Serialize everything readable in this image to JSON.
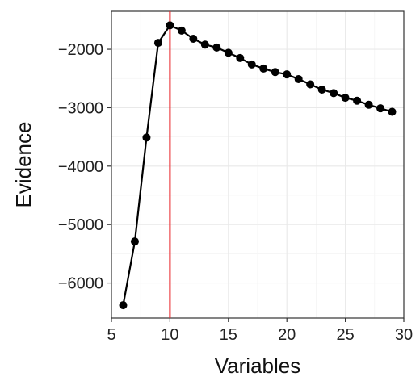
{
  "chart_data": {
    "type": "line",
    "xlabel": "Variables",
    "ylabel": "Evidence",
    "xlim": [
      5,
      30
    ],
    "ylim": [
      -6600,
      -1350
    ],
    "x_ticks": [
      5,
      10,
      15,
      20,
      25,
      30
    ],
    "x_tick_labels": [
      "5",
      "10",
      "15",
      "20",
      "25",
      "30"
    ],
    "y_ticks": [
      -6000,
      -5000,
      -4000,
      -3000,
      -2000
    ],
    "y_tick_labels": [
      "−6000",
      "−5000",
      "−4000",
      "−3000",
      "−2000"
    ],
    "grid": true,
    "vline": {
      "x": 10,
      "color": "#e8262b"
    },
    "series": [
      {
        "color": "#000000",
        "x": [
          6,
          7,
          8,
          9,
          10,
          11,
          12,
          13,
          14,
          15,
          16,
          17,
          18,
          19,
          20,
          21,
          22,
          23,
          24,
          25,
          26,
          27,
          28,
          29
        ],
        "y": [
          -6380,
          -5290,
          -3510,
          -1890,
          -1590,
          -1680,
          -1820,
          -1920,
          -1970,
          -2060,
          -2150,
          -2260,
          -2330,
          -2390,
          -2430,
          -2510,
          -2600,
          -2690,
          -2750,
          -2830,
          -2880,
          -2950,
          -3010,
          -3070
        ]
      }
    ]
  }
}
